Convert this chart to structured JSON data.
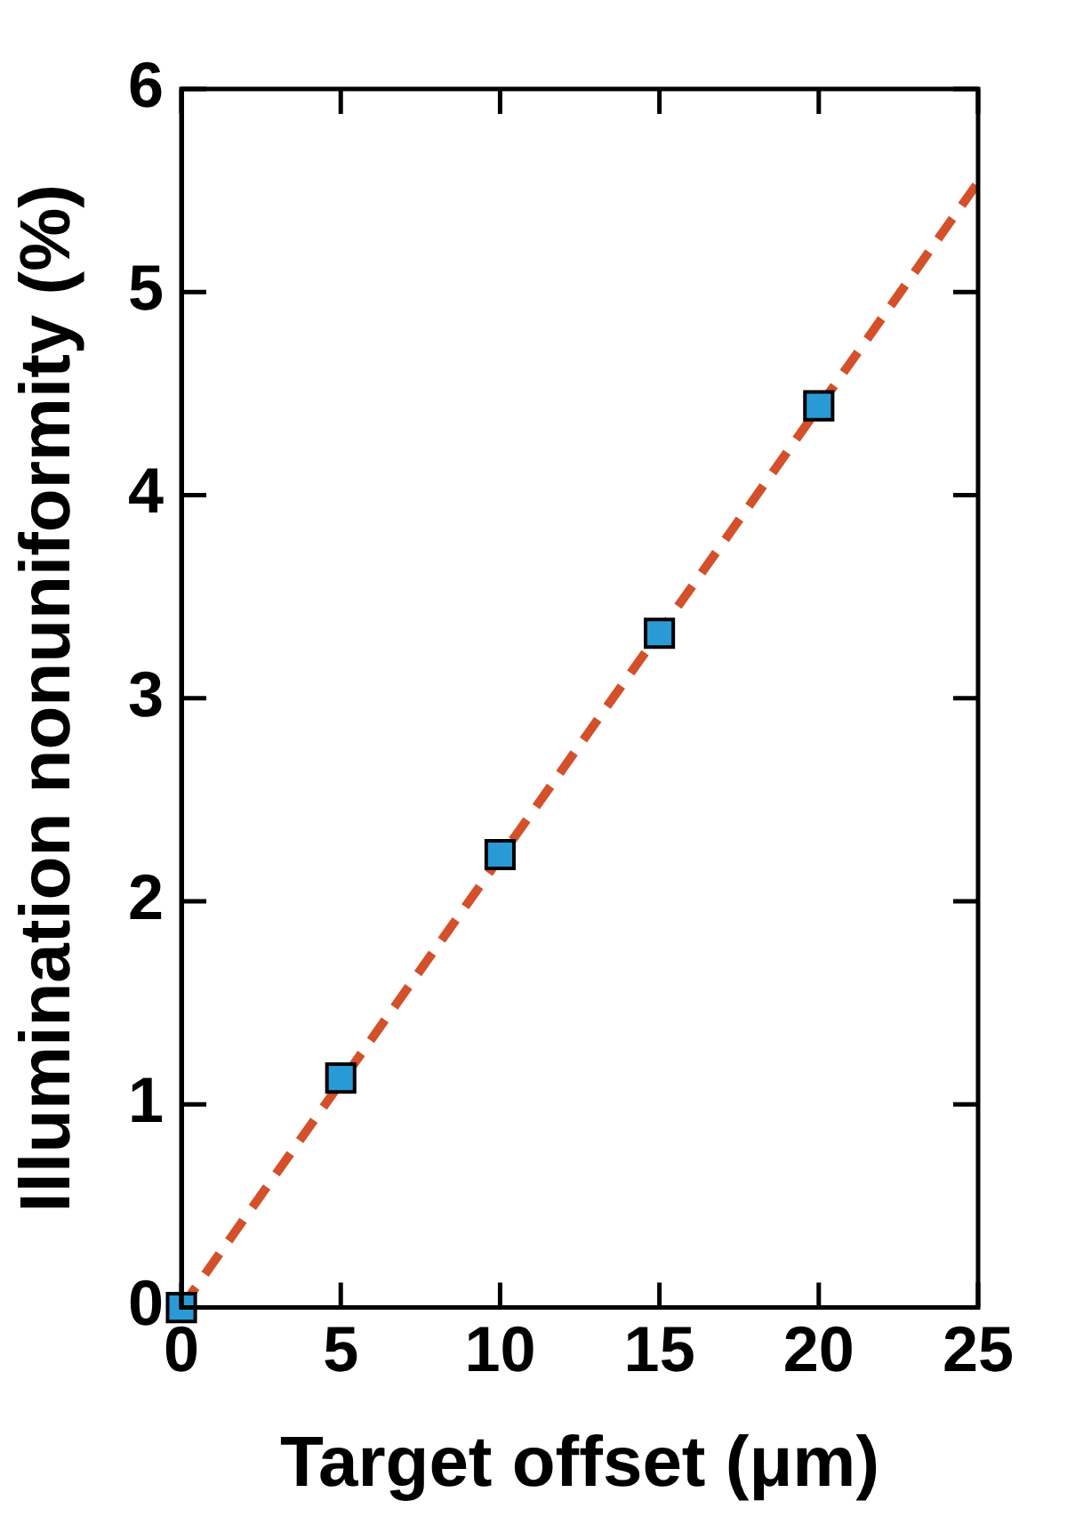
{
  "chart_data": {
    "type": "scatter",
    "xlabel": "Target offset (μm)",
    "ylabel": "Illumination nonuniformity (%)",
    "xlim": [
      0,
      25
    ],
    "xticks": [
      0,
      5,
      10,
      15,
      20,
      25
    ],
    "ylim": [
      0,
      6
    ],
    "yticks": [
      0,
      1,
      2,
      3,
      4,
      5,
      6
    ],
    "grid": false,
    "legend": false,
    "series": [
      {
        "type": "line",
        "x": [
          0,
          25
        ],
        "values": [
          0,
          5.54
        ],
        "color": "#d4502a",
        "line_style": "dashed",
        "marker": "none"
      },
      {
        "x": [
          0,
          5,
          10,
          15,
          20
        ],
        "values": [
          0,
          1.13,
          2.23,
          3.32,
          4.44
        ],
        "color": "#2a9ad6",
        "marker": "square"
      }
    ]
  }
}
